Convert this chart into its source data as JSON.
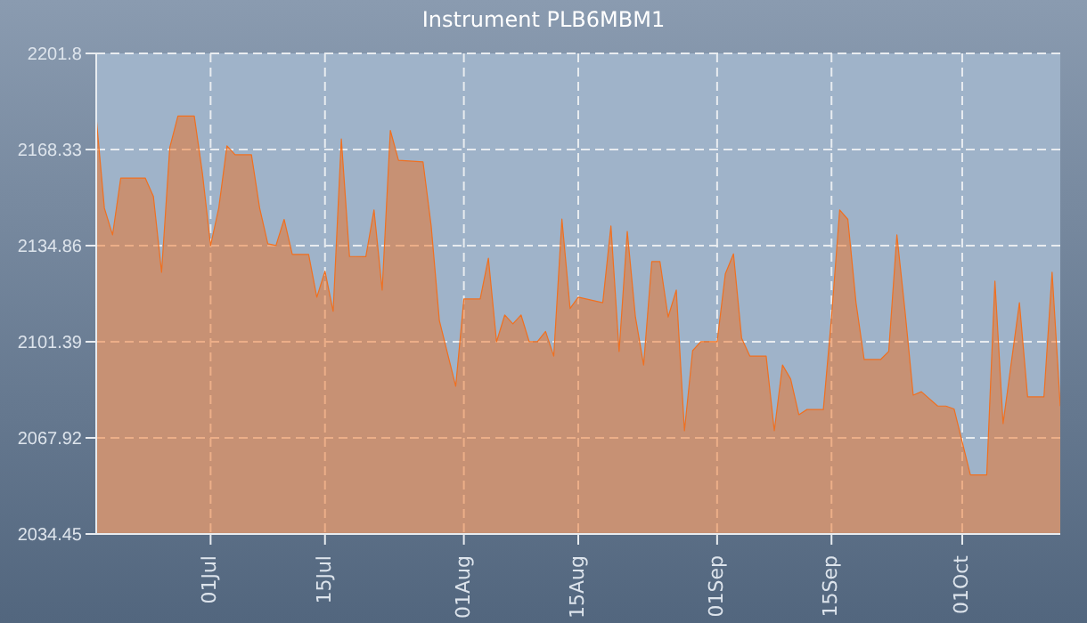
{
  "chart_data": {
    "type": "area",
    "title": "Instrument PLB6MBM1",
    "x": [
      "--06-17",
      "--06-18",
      "--06-19",
      "--06-20",
      "--06-23",
      "--06-24",
      "--06-25",
      "--06-26",
      "--06-27",
      "--06-29",
      "--06-30",
      "--07-01",
      "--07-02",
      "--07-03",
      "--07-04",
      "--07-06",
      "--07-07",
      "--07-08",
      "--07-09",
      "--07-10",
      "--07-11",
      "--07-13",
      "--07-14",
      "--07-15",
      "--07-16",
      "--07-17",
      "--07-18",
      "--07-20",
      "--07-21",
      "--07-22",
      "--07-23",
      "--07-24",
      "--07-27",
      "--07-28",
      "--07-29",
      "--07-31",
      "--08-01",
      "--08-03",
      "--08-04",
      "--08-05",
      "--08-06",
      "--08-07",
      "--08-08",
      "--08-09",
      "--08-10",
      "--08-11",
      "--08-12",
      "--08-13",
      "--08-14",
      "--08-15",
      "--08-18",
      "--08-19",
      "--08-20",
      "--08-21",
      "--08-22",
      "--08-23",
      "--08-24",
      "--08-25",
      "--08-26",
      "--08-27",
      "--08-28",
      "--08-29",
      "--08-30",
      "--09-01",
      "--09-02",
      "--09-03",
      "--09-04",
      "--09-05",
      "--09-07",
      "--09-08",
      "--09-09",
      "--09-10",
      "--09-11",
      "--09-12",
      "--09-14",
      "--09-15",
      "--09-16",
      "--09-17",
      "--09-18",
      "--09-19",
      "--09-21",
      "--09-22",
      "--09-23",
      "--09-24",
      "--09-25",
      "--09-26",
      "--09-28",
      "--09-29",
      "--09-30",
      "--10-02",
      "--10-04",
      "--10-05",
      "--10-06",
      "--10-08",
      "--10-09",
      "--10-11",
      "--10-12",
      "--10-13"
    ],
    "series": [
      {
        "color": "#f07020",
        "values": [
          2179.5,
          2147.9,
          2138.6,
          2158.4,
          2158.4,
          2152,
          2125.6,
          2169,
          2180,
          2180,
          2160,
          2134.9,
          2148,
          2169.6,
          2166.5,
          2166.5,
          2148,
          2135.5,
          2134.9,
          2144,
          2131.8,
          2131.8,
          2116.9,
          2126,
          2112,
          2172,
          2131.1,
          2131,
          2147.3,
          2119.4,
          2175,
          2164.6,
          2164,
          2141.7,
          2108.8,
          2085.9,
          2116.3,
          2116.3,
          2130.5,
          2101.4,
          2110.7,
          2107.6,
          2110.7,
          2101.4,
          2101.4,
          2105,
          2096.4,
          2144.1,
          2113,
          2116.9,
          2115,
          2141.7,
          2098,
          2139.8,
          2110,
          2093.3,
          2129.3,
          2129.3,
          2110,
          2119.4,
          2070.4,
          2098.3,
          2101.4,
          2101.4,
          2125,
          2132,
          2102.6,
          2096.4,
          2096.4,
          2070.4,
          2093.3,
          2088.4,
          2076,
          2077.8,
          2077.8,
          2110,
          2147.3,
          2144,
          2115,
          2095.2,
          2095.2,
          2098,
          2138.6,
          2112,
          2082.8,
          2084,
          2079,
          2079,
          2078,
          2055,
          2055,
          2122.5,
          2072.9,
          2115,
          2082.2,
          2082.2,
          2125.6,
          2079
        ]
      }
    ],
    "xlim": [
      "--06-17",
      "--10-13"
    ],
    "xticks": [
      {
        "value": "--07-01",
        "label": "01Jul"
      },
      {
        "value": "--07-15",
        "label": "15Jul"
      },
      {
        "value": "--08-01",
        "label": "01Aug"
      },
      {
        "value": "--08-15",
        "label": "15Aug"
      },
      {
        "value": "--09-01",
        "label": "01Sep"
      },
      {
        "value": "--09-15",
        "label": "15Sep"
      },
      {
        "value": "--10-01",
        "label": "01Oct"
      }
    ],
    "ylim": [
      2034.45,
      2201.8
    ],
    "yticks": [
      2034.45,
      2067.92,
      2101.39,
      2134.86,
      2168.33,
      2201.8
    ],
    "grid": true
  }
}
